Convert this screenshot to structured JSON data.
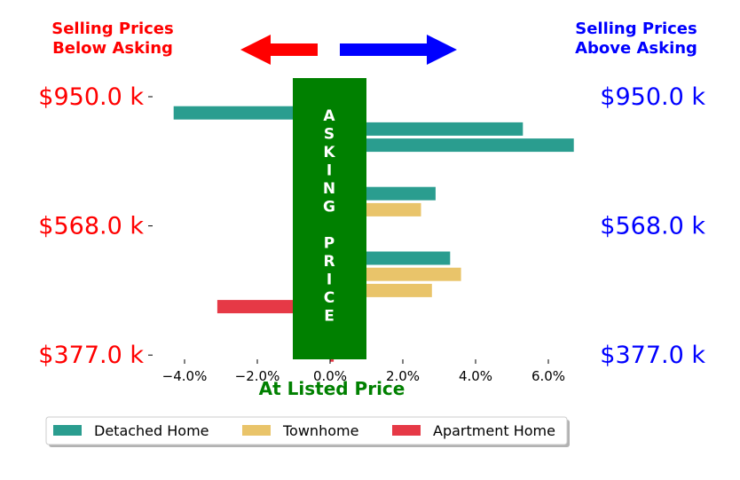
{
  "chart_data": {
    "type": "bar",
    "orientation": "horizontal",
    "title": "",
    "xlabel": "At Listed Price",
    "ylabel": "",
    "header_left": [
      "Selling Prices",
      "Below Asking"
    ],
    "header_right": [
      "Selling Prices",
      "Above Asking"
    ],
    "center_banner": "ASKING PRICE",
    "xlim": [
      -5.0,
      6.5
    ],
    "x_ticks": [
      -4.0,
      -2.0,
      0.0,
      2.0,
      4.0,
      6.0
    ],
    "x_tick_labels": [
      "−4.0%",
      "−2.0%",
      "0.0%",
      "2.0%",
      "4.0%",
      "6.0%"
    ],
    "y_tick_labels_left": [
      "$950.0 k",
      "$568.0 k",
      "$377.0 k"
    ],
    "y_tick_labels_right": [
      "$950.0 k",
      "$568.0 k",
      "$377.0 k"
    ],
    "y_tick_rows": [
      0,
      8,
      16
    ],
    "grid": false,
    "legend_position": "bottom",
    "legend": [
      {
        "name": "Detached Home",
        "color": "#2a9d8f"
      },
      {
        "name": "Townhome",
        "color": "#e9c46a"
      },
      {
        "name": "Apartment Home",
        "color": "#e63946"
      }
    ],
    "bars": [
      {
        "type": "Detached Home",
        "value": 0.1
      },
      {
        "type": "Detached Home",
        "value": -4.3
      },
      {
        "type": "Detached Home",
        "value": 5.3
      },
      {
        "type": "Detached Home",
        "value": 6.7
      },
      {
        "type": "Detached Home",
        "value": 0.1
      },
      {
        "type": "Detached Home",
        "value": 0.1
      },
      {
        "type": "Detached Home",
        "value": 2.9
      },
      {
        "type": "Townhome",
        "value": 2.5
      },
      {
        "type": "Townhome",
        "value": 0.1
      },
      {
        "type": "Detached Home",
        "value": 0.1
      },
      {
        "type": "Detached Home",
        "value": 3.3
      },
      {
        "type": "Townhome",
        "value": 3.6
      },
      {
        "type": "Townhome",
        "value": 2.8
      },
      {
        "type": "Apartment Home",
        "value": -3.1
      },
      {
        "type": "Apartment Home",
        "value": 0.1
      },
      {
        "type": "Townhome",
        "value": 0.1
      },
      {
        "type": "Apartment Home",
        "value": 0.1
      }
    ]
  },
  "colors": {
    "below": "#ff0000",
    "above": "#0000ff",
    "banner": "#008000",
    "xlabel": "#008000"
  }
}
